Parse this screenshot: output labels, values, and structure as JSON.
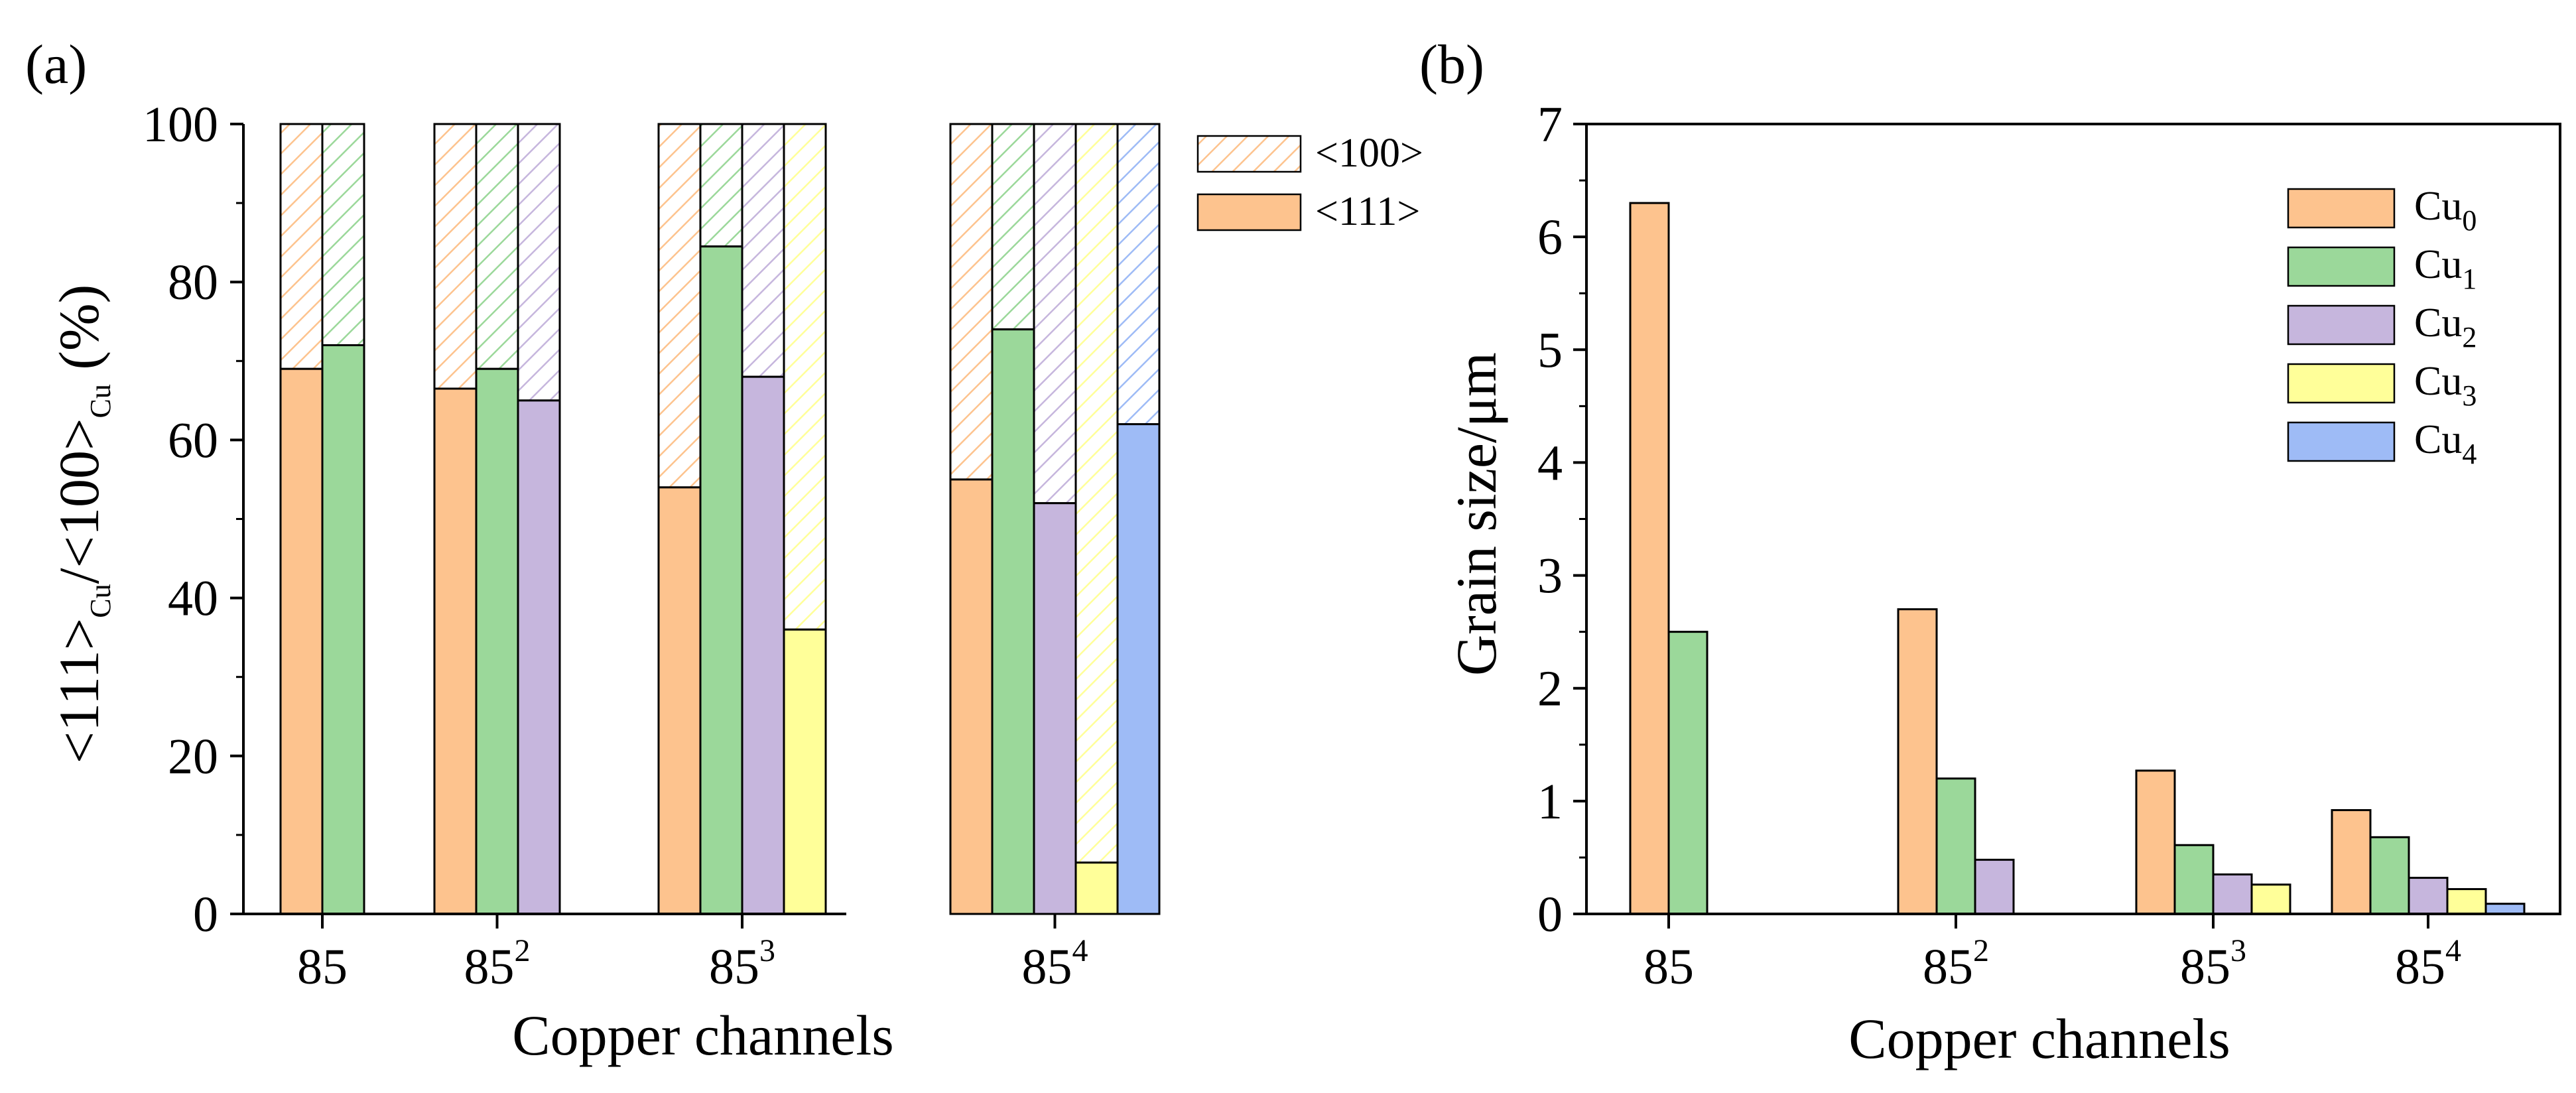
{
  "colors": {
    "Cu0": "#FDC38E",
    "Cu1": "#9BD89A",
    "Cu2": "#C6B6DD",
    "Cu3": "#FFFF99",
    "Cu4": "#9EBBF6"
  },
  "chart_data": [
    {
      "panel": "(a)",
      "type": "bar",
      "stacked": true,
      "xlabel": "Copper channels",
      "ylabel_parts": [
        "<111>",
        "Cu",
        "/<100>",
        "Cu",
        " (%)"
      ],
      "ylim": [
        0,
        100
      ],
      "yticks": [
        0,
        20,
        40,
        60,
        80,
        100
      ],
      "legend": [
        {
          "label": "<100>",
          "style": "hatched"
        },
        {
          "label": "<111>",
          "style": "solid"
        }
      ],
      "legend_position": "top-right outside",
      "groups": [
        {
          "base": "85",
          "exp": "",
          "bars": [
            {
              "series": "Cu0",
              "value_111": 69
            },
            {
              "series": "Cu1",
              "value_111": 72
            }
          ]
        },
        {
          "base": "85",
          "exp": "2",
          "bars": [
            {
              "series": "Cu0",
              "value_111": 66.5
            },
            {
              "series": "Cu1",
              "value_111": 69
            },
            {
              "series": "Cu2",
              "value_111": 65
            }
          ]
        },
        {
          "base": "85",
          "exp": "3",
          "bars": [
            {
              "series": "Cu0",
              "value_111": 54
            },
            {
              "series": "Cu1",
              "value_111": 84.5
            },
            {
              "series": "Cu2",
              "value_111": 68
            },
            {
              "series": "Cu3",
              "value_111": 36
            }
          ]
        },
        {
          "base": "85",
          "exp": "4",
          "bars": [
            {
              "series": "Cu0",
              "value_111": 55
            },
            {
              "series": "Cu1",
              "value_111": 74
            },
            {
              "series": "Cu2",
              "value_111": 52
            },
            {
              "series": "Cu3",
              "value_111": 6.5
            },
            {
              "series": "Cu4",
              "value_111": 62
            }
          ]
        }
      ]
    },
    {
      "panel": "(b)",
      "type": "bar",
      "xlabel": "Copper channels",
      "ylabel": "Grain size/μm",
      "ylim": [
        0,
        7
      ],
      "yticks": [
        0,
        1,
        2,
        3,
        4,
        5,
        6,
        7
      ],
      "legend_position": "top-right inside",
      "series": [
        {
          "key": "Cu0",
          "base": "Cu",
          "sub": "0"
        },
        {
          "key": "Cu1",
          "base": "Cu",
          "sub": "1"
        },
        {
          "key": "Cu2",
          "base": "Cu",
          "sub": "2"
        },
        {
          "key": "Cu3",
          "base": "Cu",
          "sub": "3"
        },
        {
          "key": "Cu4",
          "base": "Cu",
          "sub": "4"
        }
      ],
      "groups": [
        {
          "base": "85",
          "exp": "",
          "bars": [
            {
              "series": "Cu0",
              "value": 6.3
            },
            {
              "series": "Cu1",
              "value": 2.5
            }
          ]
        },
        {
          "base": "85",
          "exp": "2",
          "bars": [
            {
              "series": "Cu0",
              "value": 2.7
            },
            {
              "series": "Cu1",
              "value": 1.2
            },
            {
              "series": "Cu2",
              "value": 0.48
            }
          ]
        },
        {
          "base": "85",
          "exp": "3",
          "bars": [
            {
              "series": "Cu0",
              "value": 1.27
            },
            {
              "series": "Cu1",
              "value": 0.61
            },
            {
              "series": "Cu2",
              "value": 0.35
            },
            {
              "series": "Cu3",
              "value": 0.26
            }
          ]
        },
        {
          "base": "85",
          "exp": "4",
          "bars": [
            {
              "series": "Cu0",
              "value": 0.92
            },
            {
              "series": "Cu1",
              "value": 0.68
            },
            {
              "series": "Cu2",
              "value": 0.32
            },
            {
              "series": "Cu3",
              "value": 0.22
            },
            {
              "series": "Cu4",
              "value": 0.09
            }
          ]
        }
      ]
    }
  ]
}
